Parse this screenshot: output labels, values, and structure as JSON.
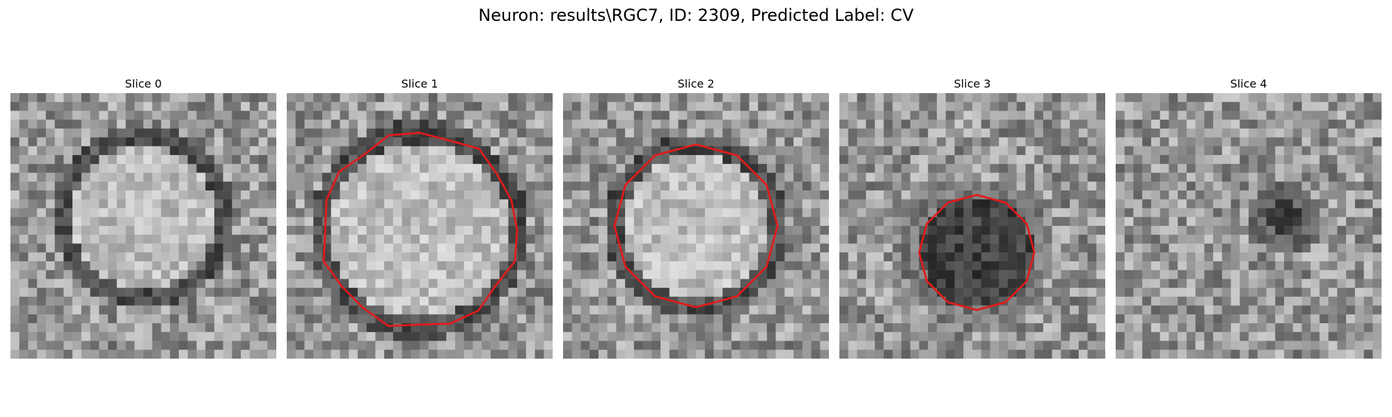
{
  "figure": {
    "title": "Neuron: results\\RGC7, ID: 2309, Predicted Label: CV"
  },
  "overlay_color": "#e31a1c",
  "panels": [
    {
      "title": "Slice 0",
      "pattern": "ring-bright-center",
      "contour": false
    },
    {
      "title": "Slice 1",
      "pattern": "ring-bright-center",
      "contour": true
    },
    {
      "title": "Slice 2",
      "pattern": "ring-bright-center",
      "contour": true
    },
    {
      "title": "Slice 3",
      "pattern": "dark-center",
      "contour": true
    },
    {
      "title": "Slice 4",
      "pattern": "noise",
      "contour": false
    }
  ]
}
